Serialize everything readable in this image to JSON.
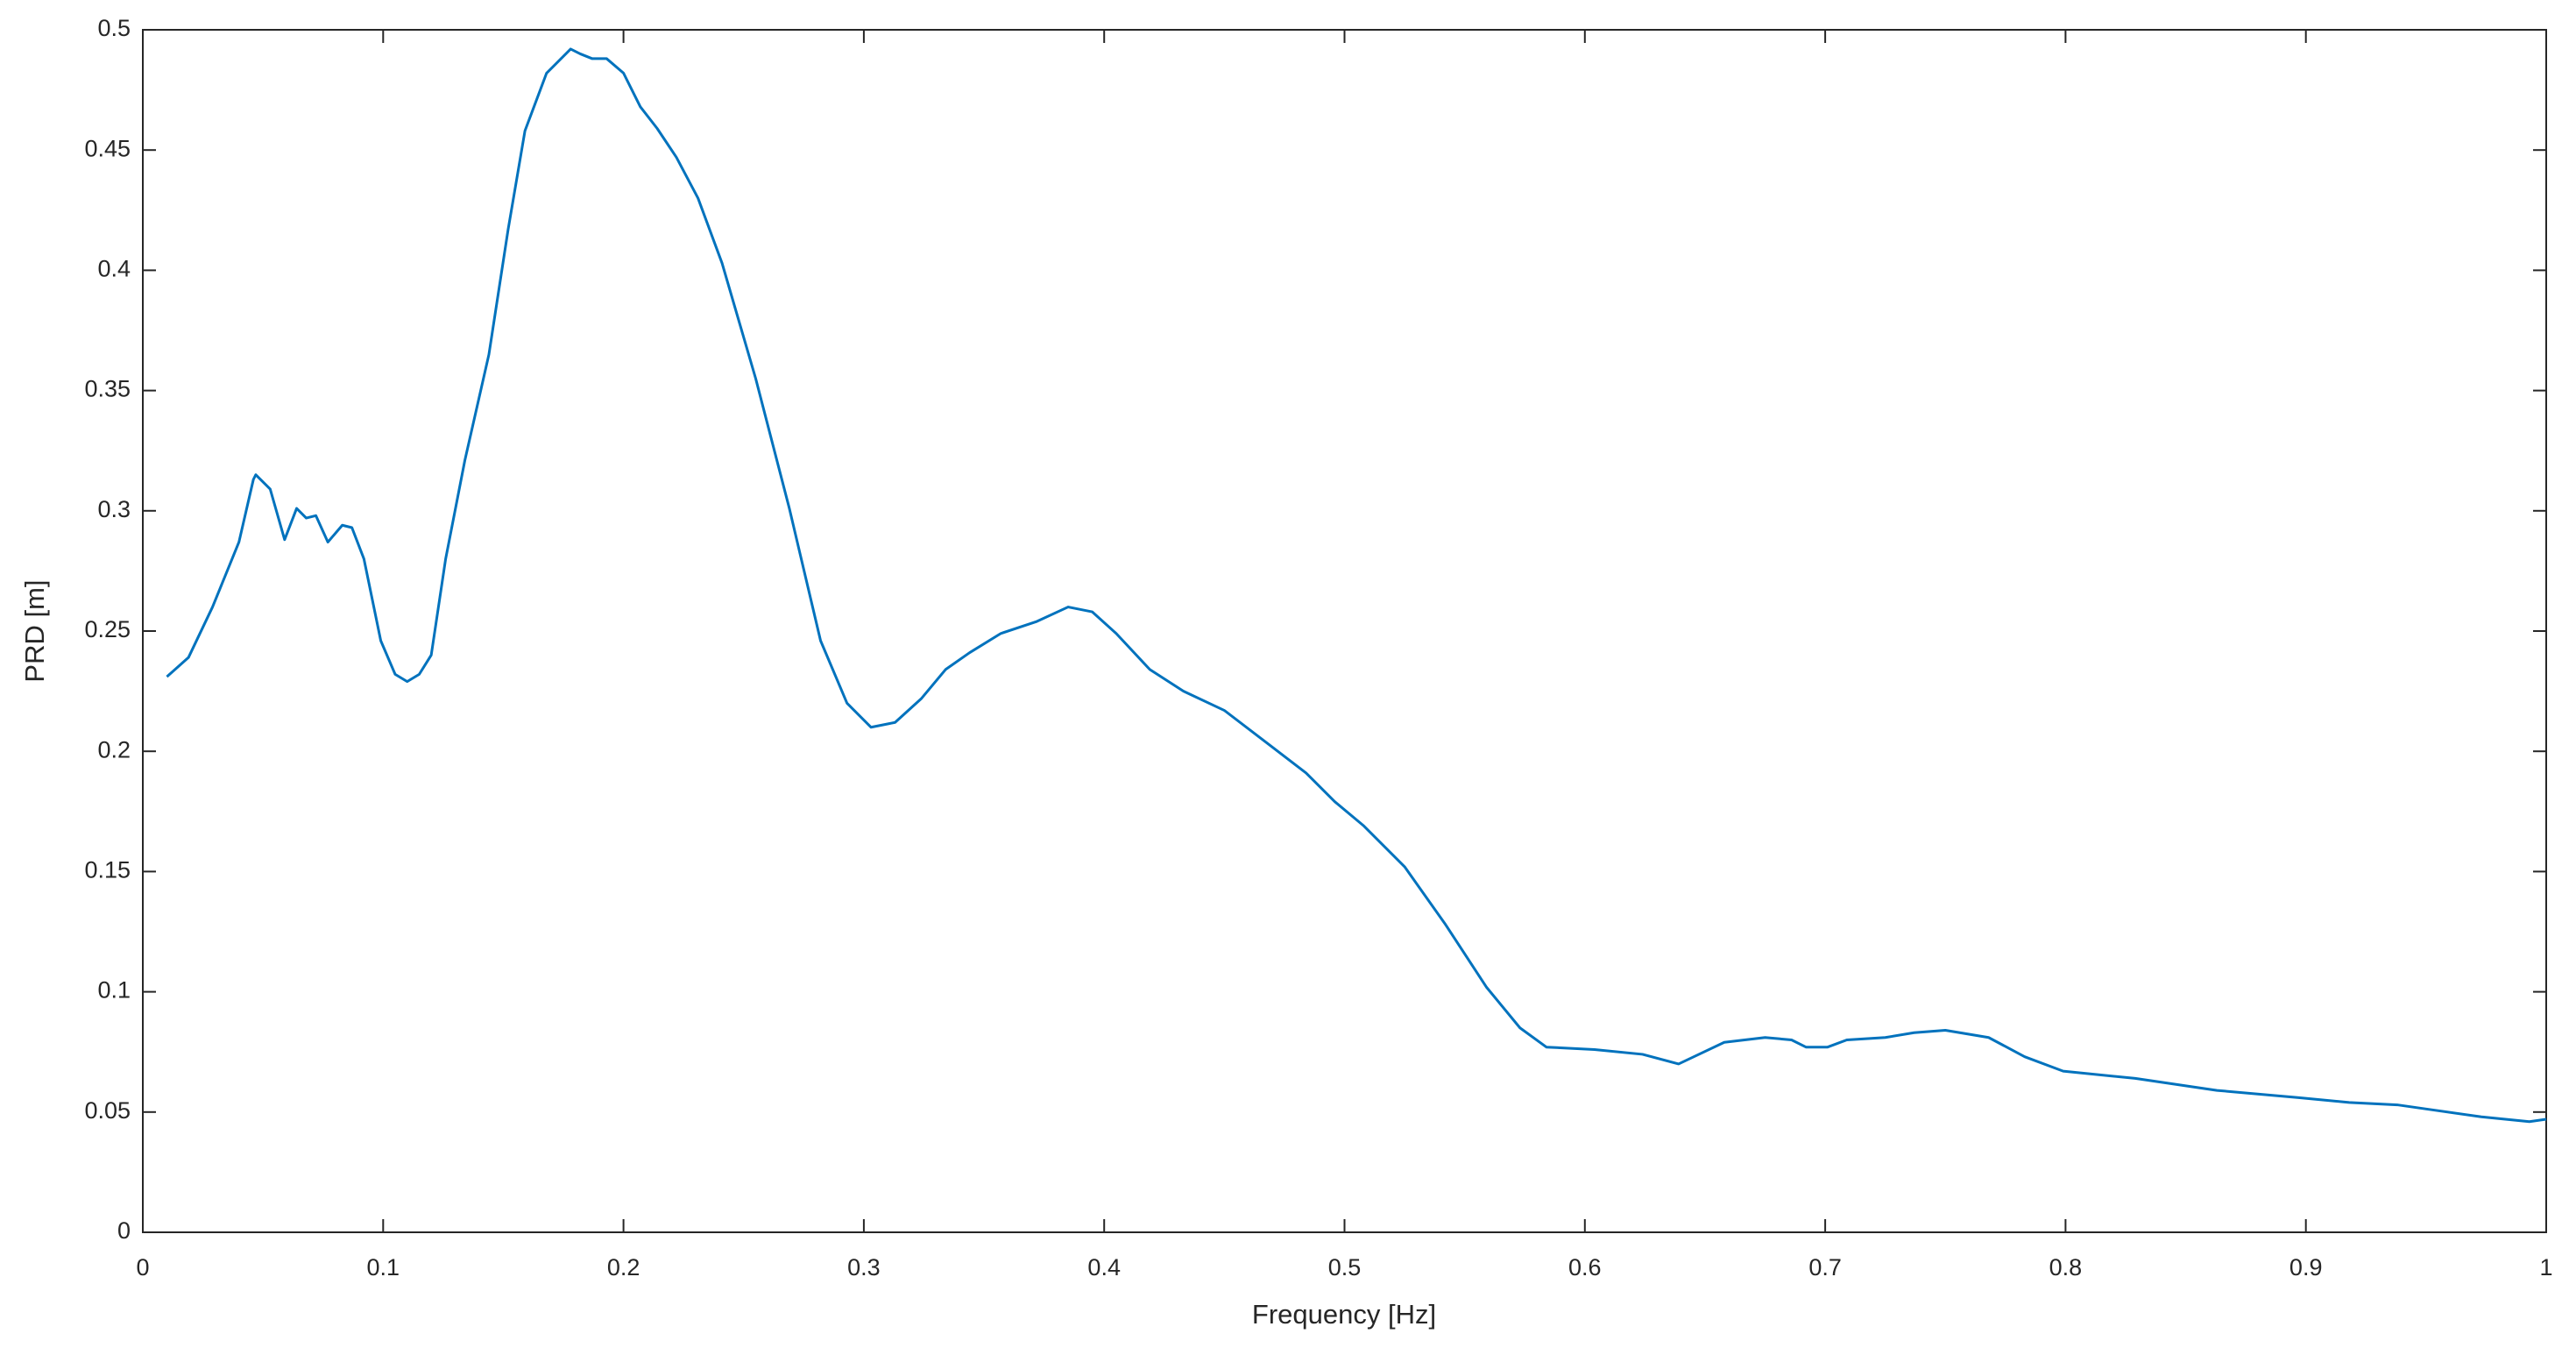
{
  "chart_data": {
    "type": "line",
    "x_label": "Frequency [Hz]",
    "y_label": "PRD [m]",
    "color": "#0072bd",
    "x": [
      0.01,
      0.019,
      0.029,
      0.04,
      0.046,
      0.047,
      0.053,
      0.059,
      0.064,
      0.068,
      0.072,
      0.077,
      0.083,
      0.087,
      0.092,
      0.099,
      0.105,
      0.11,
      0.115,
      0.12,
      0.126,
      0.134,
      0.144,
      0.152,
      0.159,
      0.168,
      0.178,
      0.182,
      0.187,
      0.193,
      0.2,
      0.207,
      0.214,
      0.222,
      0.231,
      0.241,
      0.255,
      0.269,
      0.282,
      0.293,
      0.303,
      0.313,
      0.324,
      0.334,
      0.344,
      0.357,
      0.372,
      0.385,
      0.395,
      0.405,
      0.419,
      0.433,
      0.45,
      0.467,
      0.484,
      0.496,
      0.508,
      0.525,
      0.542,
      0.559,
      0.573,
      0.584,
      0.604,
      0.624,
      0.639,
      0.658,
      0.675,
      0.686,
      0.692,
      0.701,
      0.709,
      0.725,
      0.737,
      0.75,
      0.768,
      0.783,
      0.799,
      0.829,
      0.863,
      0.897,
      0.918,
      0.938,
      0.952,
      0.973,
      0.993,
      1.0
    ],
    "values": [
      0.231,
      0.239,
      0.26,
      0.287,
      0.313,
      0.315,
      0.309,
      0.288,
      0.301,
      0.297,
      0.298,
      0.287,
      0.294,
      0.293,
      0.28,
      0.246,
      0.232,
      0.229,
      0.232,
      0.24,
      0.28,
      0.321,
      0.365,
      0.417,
      0.458,
      0.482,
      0.492,
      0.49,
      0.488,
      0.488,
      0.482,
      0.468,
      0.459,
      0.447,
      0.43,
      0.403,
      0.355,
      0.301,
      0.246,
      0.22,
      0.21,
      0.212,
      0.222,
      0.234,
      0.241,
      0.249,
      0.254,
      0.26,
      0.258,
      0.249,
      0.234,
      0.225,
      0.217,
      0.204,
      0.191,
      0.179,
      0.169,
      0.152,
      0.128,
      0.102,
      0.085,
      0.077,
      0.076,
      0.074,
      0.07,
      0.079,
      0.081,
      0.08,
      0.077,
      0.077,
      0.08,
      0.081,
      0.083,
      0.084,
      0.081,
      0.073,
      0.067,
      0.064,
      0.059,
      0.056,
      0.054,
      0.053,
      0.051,
      0.048,
      0.046,
      0.047
    ],
    "xlim": [
      0,
      1
    ],
    "xticks": [
      0,
      0.1,
      0.2,
      0.3,
      0.4,
      0.5,
      0.6,
      0.7,
      0.8,
      0.9,
      1
    ],
    "ylim": [
      0,
      0.5
    ],
    "yticks": [
      0,
      0.05,
      0.1,
      0.15,
      0.2,
      0.25,
      0.3,
      0.35,
      0.4,
      0.45,
      0.5
    ]
  }
}
